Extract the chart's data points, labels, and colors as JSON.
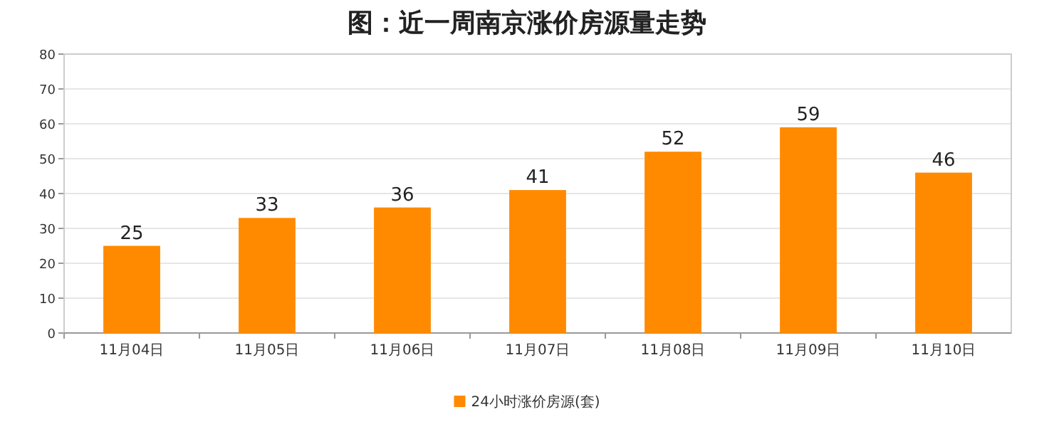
{
  "chart_data": {
    "type": "bar",
    "title": "图：近一周南京涨价房源量走势",
    "categories": [
      "11月04日",
      "11月05日",
      "11月06日",
      "11月07日",
      "11月08日",
      "11月09日",
      "11月10日"
    ],
    "series": [
      {
        "name": "24小时涨价房源(套)",
        "color": "#ff8a00",
        "values": [
          25,
          33,
          36,
          41,
          52,
          59,
          46
        ]
      }
    ],
    "ylim": [
      0,
      80
    ],
    "yticks": [
      0,
      10,
      20,
      30,
      40,
      50,
      60,
      70,
      80
    ],
    "grid": "y",
    "data_labels": true,
    "legend": "bottom"
  }
}
